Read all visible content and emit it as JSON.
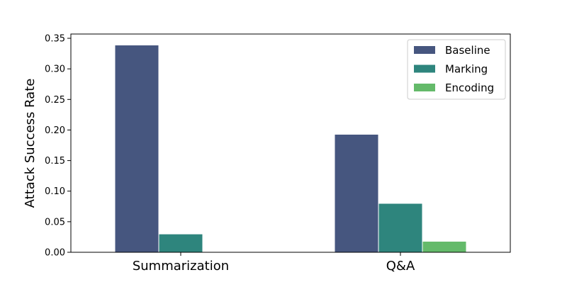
{
  "chart_data": {
    "type": "bar",
    "title": "",
    "xlabel": "",
    "ylabel": "Attack Success Rate",
    "categories": [
      "Summarization",
      "Q&A"
    ],
    "series": [
      {
        "name": "Baseline",
        "values": [
          0.339,
          0.193
        ],
        "color": "#46567f"
      },
      {
        "name": "Marking",
        "values": [
          0.03,
          0.08
        ],
        "color": "#2e857d"
      },
      {
        "name": "Encoding",
        "values": [
          0.0,
          0.018
        ],
        "color": "#64ba6a"
      }
    ],
    "ylim": [
      0,
      0.357
    ],
    "yticks": [
      "0.00",
      "0.05",
      "0.10",
      "0.15",
      "0.20",
      "0.25",
      "0.30",
      "0.35"
    ],
    "grid": false,
    "legend_position": "top-right"
  }
}
